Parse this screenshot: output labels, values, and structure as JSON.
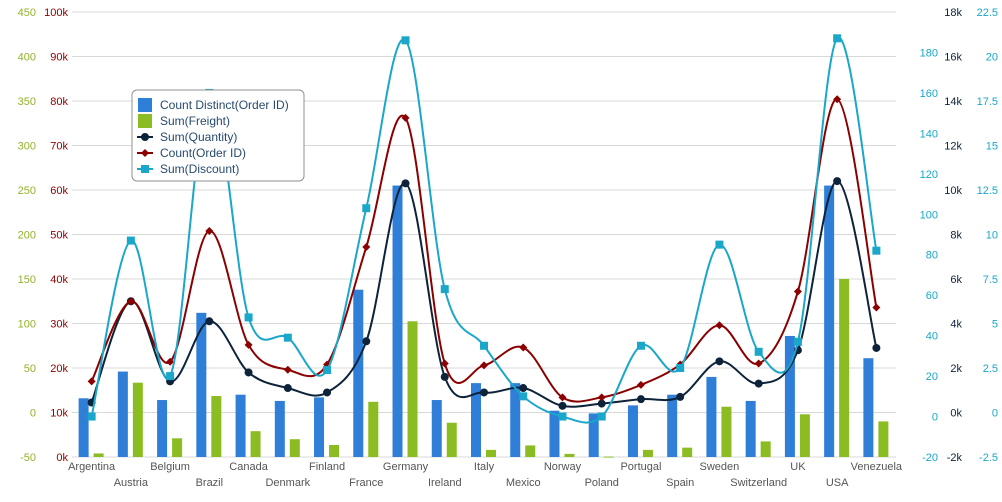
{
  "chart_data": {
    "type": "bar",
    "categories": [
      "Argentina",
      "Austria",
      "Belgium",
      "Brazil",
      "Canada",
      "Denmark",
      "Finland",
      "France",
      "Germany",
      "Ireland",
      "Italy",
      "Mexico",
      "Norway",
      "Poland",
      "Portugal",
      "Spain",
      "Sweden",
      "Switzerland",
      "UK",
      "USA",
      "Venezuela"
    ],
    "axes": [
      {
        "id": "a1",
        "side": "left",
        "color": "#91b328",
        "min": -50,
        "max": 450,
        "ticks": [
          "-50",
          "0",
          "50",
          "100",
          "150",
          "200",
          "250",
          "300",
          "350",
          "400",
          "450"
        ],
        "tick_values": [
          -50,
          0,
          50,
          100,
          150,
          200,
          250,
          300,
          350,
          400,
          450
        ]
      },
      {
        "id": "a2",
        "side": "left",
        "color": "#8b0000",
        "min": 0,
        "max": 100000,
        "ticks": [
          "0k",
          "10k",
          "20k",
          "30k",
          "40k",
          "50k",
          "60k",
          "70k",
          "80k",
          "90k",
          "100k"
        ],
        "tick_values": [
          0,
          10000,
          20000,
          30000,
          40000,
          50000,
          60000,
          70000,
          80000,
          90000,
          100000
        ]
      },
      {
        "id": "a3",
        "side": "right",
        "color": "#1aa7c9",
        "min": -20,
        "max": 200,
        "ticks": [
          "-20",
          "0",
          "20",
          "40",
          "60",
          "80",
          "100",
          "120",
          "140",
          "160",
          "180"
        ],
        "tick_values": [
          -20,
          0,
          20,
          40,
          60,
          80,
          100,
          120,
          140,
          160,
          180
        ]
      },
      {
        "id": "a4",
        "side": "right",
        "color": "#0d233a",
        "min": -2000,
        "max": 18000,
        "ticks": [
          "-2k",
          "0k",
          "2k",
          "4k",
          "6k",
          "8k",
          "10k",
          "12k",
          "14k",
          "16k",
          "18k"
        ],
        "tick_values": [
          -2000,
          0,
          2000,
          4000,
          6000,
          8000,
          10000,
          12000,
          14000,
          16000,
          18000
        ]
      },
      {
        "id": "a5",
        "side": "right",
        "color": "#1aa7c9",
        "min": -2.5,
        "max": 22.5,
        "ticks": [
          "-2.5",
          "0",
          "2.5",
          "5",
          "7.5",
          "10",
          "12.5",
          "15",
          "17.5",
          "20",
          "22.5"
        ],
        "tick_values": [
          -2.5,
          0,
          2.5,
          5,
          7.5,
          10,
          12.5,
          15,
          17.5,
          20,
          22.5
        ]
      }
    ],
    "series": [
      {
        "name": "Count Distinct(Order ID)",
        "kind": "column",
        "axis": "a1",
        "color": "#2f7ed8",
        "values": [
          16,
          46,
          14,
          112,
          20,
          13,
          17,
          138,
          255,
          14,
          33,
          33,
          2,
          -1,
          8,
          20,
          40,
          13,
          86,
          255,
          61
        ]
      },
      {
        "name": "Sum(Freight)",
        "kind": "column",
        "axis": "a2",
        "color": "#8bbc21",
        "values": [
          800,
          16700,
          4200,
          13700,
          5800,
          4000,
          2700,
          12400,
          30500,
          7700,
          1600,
          2600,
          700,
          100,
          1600,
          2100,
          11300,
          3500,
          9600,
          40000,
          8000
        ]
      },
      {
        "name": "Sum(Quantity)",
        "kind": "spline",
        "axis": "a4",
        "color": "#0d233a",
        "marker": "circle",
        "values": [
          450,
          5000,
          1400,
          4100,
          1800,
          1100,
          900,
          3200,
          10300,
          1600,
          900,
          1100,
          300,
          400,
          600,
          700,
          2300,
          1300,
          2800,
          10400,
          2900
        ]
      },
      {
        "name": "Count(Order ID)",
        "kind": "spline",
        "axis": "a1",
        "color": "#8b0000",
        "marker": "diamond",
        "values": [
          35,
          125,
          57,
          204,
          76,
          48,
          54,
          186,
          331,
          55,
          53,
          73,
          17,
          17,
          31,
          54,
          98,
          55,
          136,
          352,
          118
        ]
      },
      {
        "name": "Sum(Discount)",
        "kind": "spline",
        "axis": "a3",
        "color": "#1aa7c9",
        "marker": "square",
        "values": [
          0,
          87,
          20,
          160,
          49,
          39,
          23,
          103,
          186,
          63,
          35,
          10,
          0,
          0,
          35,
          24,
          85,
          32,
          37,
          187,
          82
        ]
      }
    ],
    "legend": {
      "position": "top-left"
    }
  }
}
